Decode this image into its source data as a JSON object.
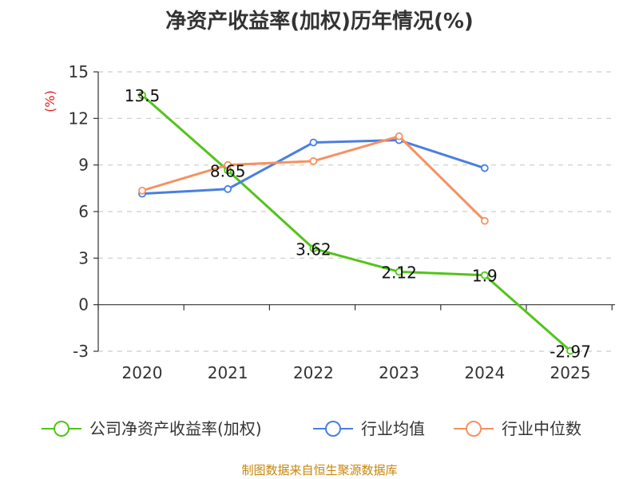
{
  "title": "净资产收益率(加权)历年情况(%)",
  "source": "制图数据来自恒生聚源数据库",
  "chart_data": {
    "type": "line",
    "ylabel": "(%)",
    "ylim": [
      -3,
      15
    ],
    "yticks": [
      -3,
      0,
      3,
      6,
      9,
      12,
      15
    ],
    "categories": [
      "2020",
      "2021",
      "2022",
      "2023",
      "2024",
      "2025"
    ],
    "grid": true,
    "legend_position": "bottom",
    "series": [
      {
        "name": "公司净资产收益率(加权)",
        "color": "#52c41a",
        "values": [
          13.5,
          8.65,
          3.62,
          2.12,
          1.9,
          -2.97
        ],
        "labels": [
          "13.5",
          "8.65",
          "3.62",
          "2.12",
          "1.9",
          "-2.97"
        ]
      },
      {
        "name": "行业均值",
        "color": "#4a7fe0",
        "values": [
          7.15,
          7.45,
          10.45,
          10.6,
          8.8,
          null
        ]
      },
      {
        "name": "行业中位数",
        "color": "#f59162",
        "values": [
          7.35,
          9.0,
          9.25,
          10.85,
          5.4,
          null
        ]
      }
    ]
  }
}
